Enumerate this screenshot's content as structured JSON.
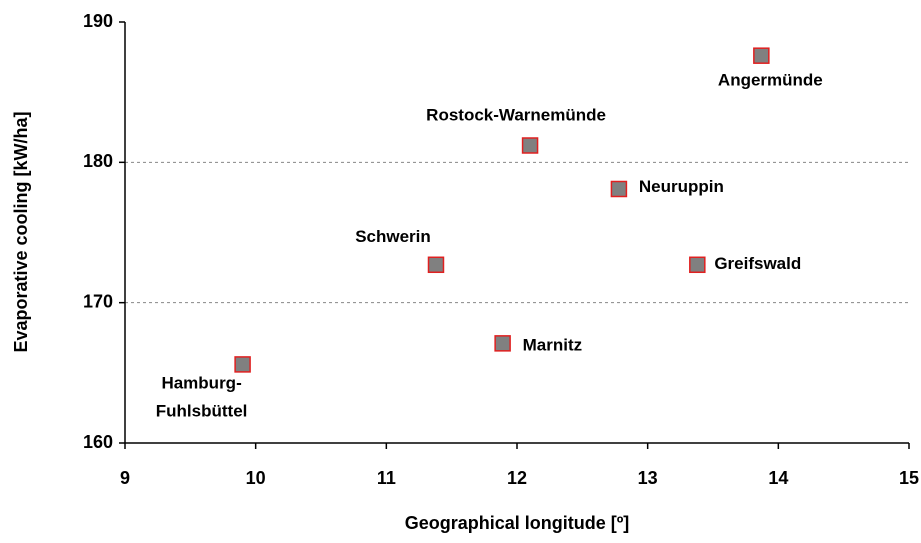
{
  "chart_data": {
    "type": "scatter",
    "xlabel": "Geographical longitude [º]",
    "ylabel": "Evaporative cooling [kW/ha]",
    "x": [
      9.9,
      11.38,
      11.89,
      12.1,
      12.78,
      13.38,
      13.87
    ],
    "values": [
      165.6,
      172.7,
      167.1,
      181.2,
      178.1,
      172.7,
      187.6
    ],
    "labels": [
      [
        "Hamburg-",
        "Fuhlsbüttel"
      ],
      [
        "Schwerin"
      ],
      [
        "Marnitz"
      ],
      [
        "Rostock-Warnemünde"
      ],
      [
        "Neuruppin"
      ],
      [
        "Greifswald"
      ],
      [
        "Angermünde"
      ]
    ],
    "color": "#808080",
    "edgecolor": "#e02020",
    "xlim": [
      9,
      15
    ],
    "xticks": [
      9,
      10,
      11,
      12,
      13,
      14,
      15
    ],
    "ylim": [
      160,
      190
    ],
    "yticks": [
      160,
      170,
      180,
      190
    ],
    "grid": true
  }
}
